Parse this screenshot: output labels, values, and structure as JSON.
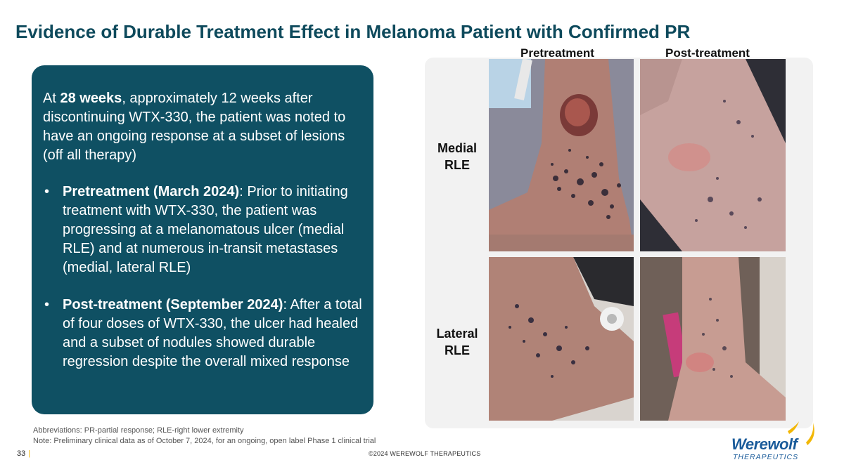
{
  "title": "Evidence of Durable Treatment Effect in Melanoma Patient with Confirmed PR",
  "summary": {
    "intro_pre": "At ",
    "intro_bold": "28 weeks",
    "intro_post": ", approximately 12 weeks after discontinuing WTX-330, the patient was noted to have an ongoing response at a subset of lesions (off all therapy)",
    "bullets": [
      {
        "bold": "Pretreatment (March 2024)",
        "text": ": Prior to initiating treatment with WTX-330, the patient was progressing at a melanomatous ulcer (medial RLE) and at numerous in-transit metastases (medial, lateral RLE)"
      },
      {
        "bold": "Post-treatment (September 2024)",
        "text": ": After a total of four doses of WTX-330, the ulcer had healed and a subset of nodules showed durable regression despite the overall mixed response"
      }
    ]
  },
  "photos": {
    "col_pre": "Pretreatment",
    "col_post": "Post-treatment",
    "row_medial": [
      "Medial",
      "RLE"
    ],
    "row_lateral": [
      "Lateral",
      "RLE"
    ]
  },
  "footnotes": {
    "abbreviations": "Abbreviations: PR-partial response; RLE-right lower extremity",
    "note": "Note: Preliminary clinical data as of October 7, 2024, for an ongoing, open label Phase 1 clinical trial"
  },
  "footer": {
    "page_number": "33",
    "separator": "|",
    "copyright": "©2024 WEREWOLF THERAPEUTICS",
    "logo_main": "Werewolf",
    "logo_sub": "THERAPEUTICS"
  }
}
